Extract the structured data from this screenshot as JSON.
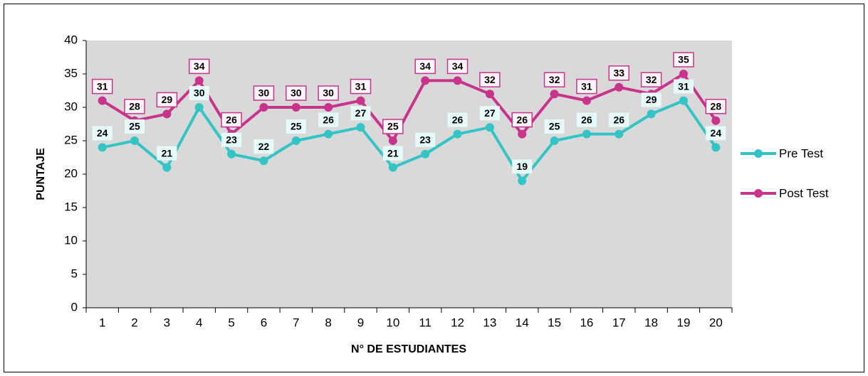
{
  "chart_data": {
    "type": "line",
    "x_label": "N° DE ESTUDIANTES",
    "y_label": "PUNTAJE",
    "categories": [
      "1",
      "2",
      "3",
      "4",
      "5",
      "6",
      "7",
      "8",
      "9",
      "10",
      "11",
      "12",
      "13",
      "14",
      "15",
      "16",
      "17",
      "18",
      "19",
      "20"
    ],
    "series": [
      {
        "name": "Pre Test",
        "color": "#33c4c6",
        "values": [
          24,
          25,
          21,
          30,
          23,
          22,
          25,
          26,
          27,
          21,
          23,
          26,
          27,
          19,
          25,
          26,
          26,
          29,
          31,
          24
        ]
      },
      {
        "name": "Post Test",
        "color": "#c8338c",
        "values": [
          31,
          28,
          29,
          34,
          26,
          30,
          30,
          30,
          31,
          25,
          34,
          34,
          32,
          26,
          32,
          31,
          33,
          32,
          35,
          28
        ]
      }
    ],
    "ylim": [
      0,
      40
    ],
    "yticks": [
      0,
      5,
      10,
      15,
      20,
      25,
      30,
      35,
      40
    ],
    "legend": "right",
    "data_labels": true
  }
}
